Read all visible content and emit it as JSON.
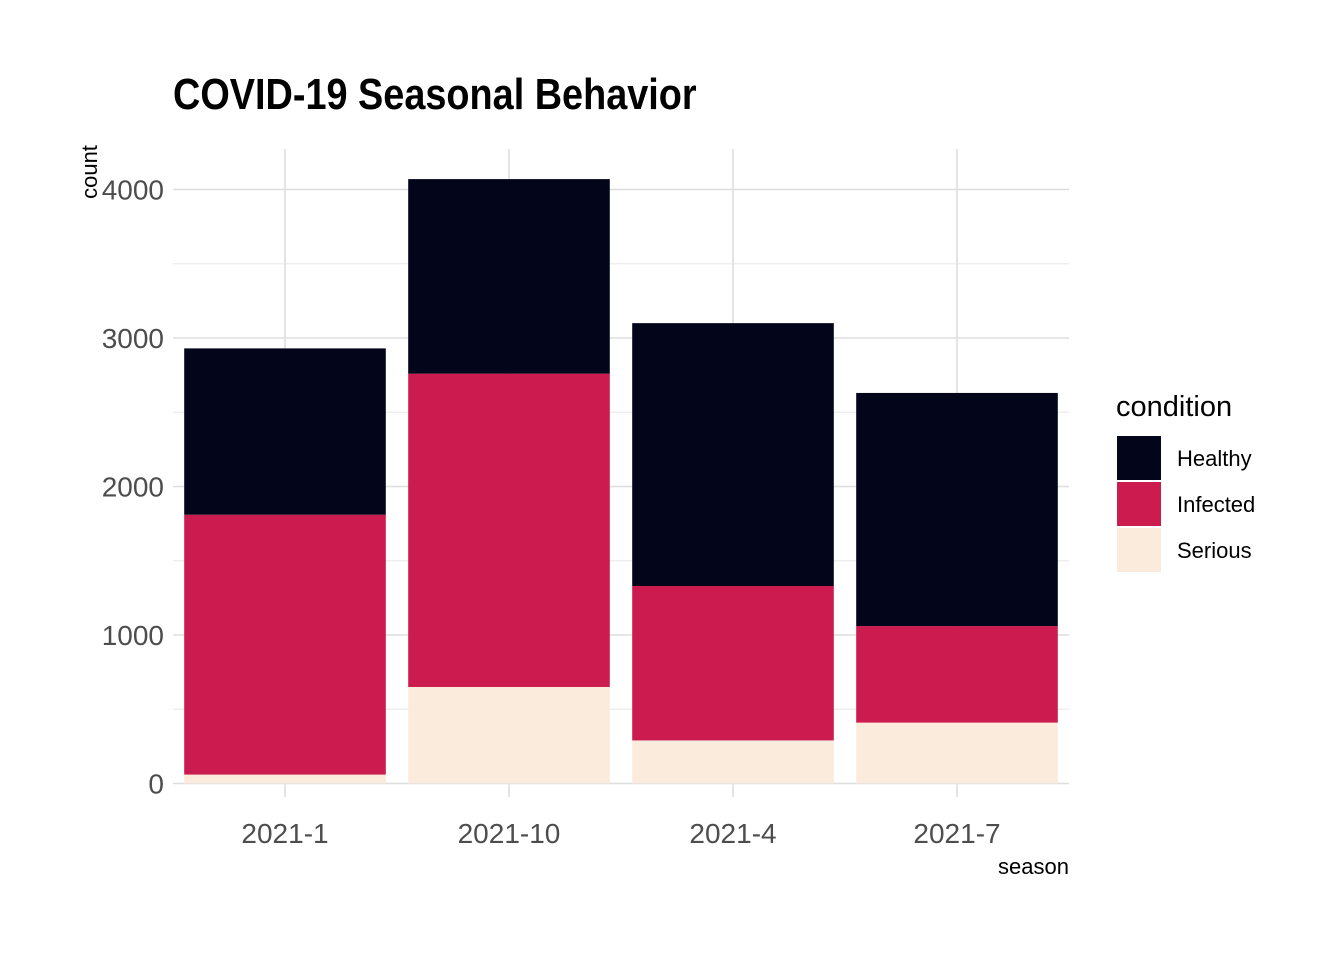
{
  "chart_data": {
    "type": "bar",
    "stacked": true,
    "title": "COVID-19 Seasonal Behavior",
    "xlabel": "season",
    "ylabel": "count",
    "categories": [
      "2021-1",
      "2021-10",
      "2021-4",
      "2021-7"
    ],
    "ylim": [
      0,
      4270
    ],
    "yticks": [
      0,
      1000,
      2000,
      3000,
      4000
    ],
    "grid": true,
    "legend_title": "condition",
    "legend_position": "right",
    "series": [
      {
        "name": "Serious",
        "color": "#FAEBDD",
        "values": [
          60,
          650,
          290,
          410
        ]
      },
      {
        "name": "Infected",
        "color": "#CB1B4F",
        "values": [
          1750,
          2110,
          1040,
          650
        ]
      },
      {
        "name": "Healthy",
        "color": "#03051A",
        "values": [
          1120,
          1310,
          1770,
          1570
        ]
      }
    ],
    "legend_order": [
      "Healthy",
      "Infected",
      "Serious"
    ]
  }
}
